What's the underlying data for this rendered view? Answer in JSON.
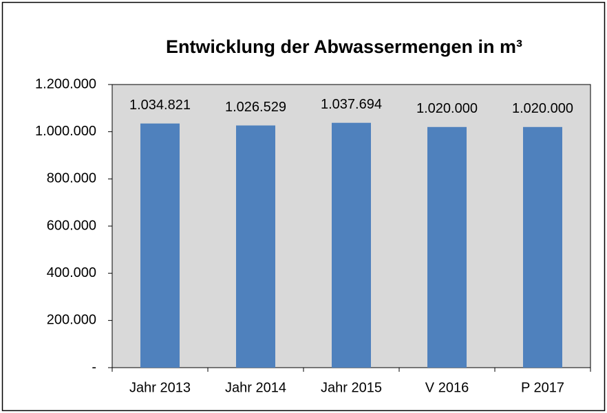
{
  "chart_data": {
    "type": "bar",
    "title": "Entwicklung der Abwassermengen in m³",
    "categories": [
      "Jahr 2013",
      "Jahr 2014",
      "Jahr 2015",
      "V 2016",
      "P 2017"
    ],
    "values": [
      1034821,
      1026529,
      1037694,
      1020000,
      1020000
    ],
    "value_labels": [
      "1.034.821",
      "1.026.529",
      "1.037.694",
      "1.020.000",
      "1.020.000"
    ],
    "color": "#4f81bd",
    "ylim": [
      0,
      1200000
    ],
    "yticks": [
      {
        "value": 0,
        "label": "-"
      },
      {
        "value": 200000,
        "label": "200.000"
      },
      {
        "value": 400000,
        "label": "400.000"
      },
      {
        "value": 600000,
        "label": "600.000"
      },
      {
        "value": 800000,
        "label": "800.000"
      },
      {
        "value": 1000000,
        "label": "1.000.000"
      },
      {
        "value": 1200000,
        "label": "1.200.000"
      }
    ],
    "grid": false
  }
}
